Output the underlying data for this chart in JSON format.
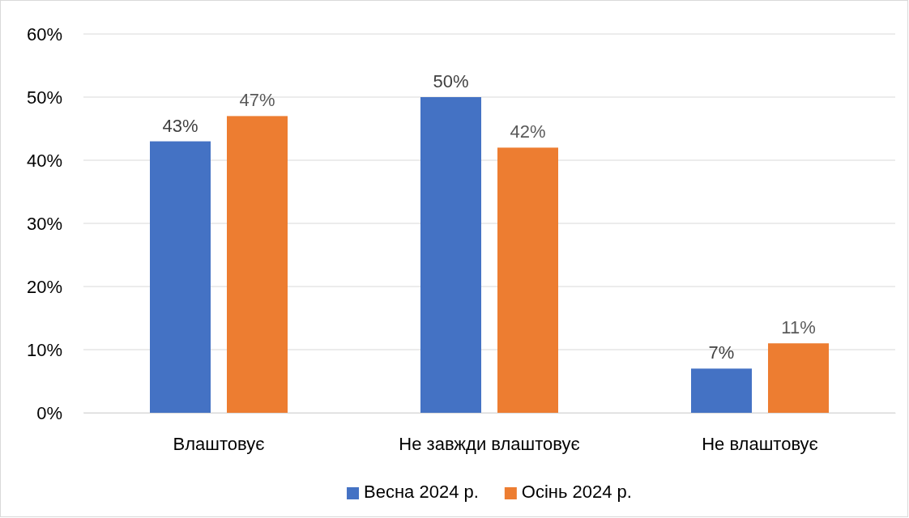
{
  "chart_data": {
    "type": "bar",
    "categories": [
      "Влаштовує",
      "Не завжди влаштовує",
      "Не влаштовує"
    ],
    "series": [
      {
        "name": "Весна 2024 р.",
        "color": "#4472c4",
        "values": [
          43,
          50,
          7
        ],
        "value_labels": [
          "43%",
          "50%",
          "7%"
        ]
      },
      {
        "name": "Осінь 2024 р.",
        "color": "#ed7d31",
        "values": [
          47,
          42,
          11
        ],
        "value_labels": [
          "47%",
          "42%",
          "11%"
        ]
      }
    ],
    "ylim": [
      0,
      60
    ],
    "yticks": [
      {
        "value": 0,
        "label": "0%"
      },
      {
        "value": 10,
        "label": "10%"
      },
      {
        "value": 20,
        "label": "20%"
      },
      {
        "value": 30,
        "label": "30%"
      },
      {
        "value": 40,
        "label": "40%"
      },
      {
        "value": 50,
        "label": "50%"
      },
      {
        "value": 60,
        "label": "60%"
      }
    ],
    "grid": "y",
    "legend": "bottom"
  }
}
